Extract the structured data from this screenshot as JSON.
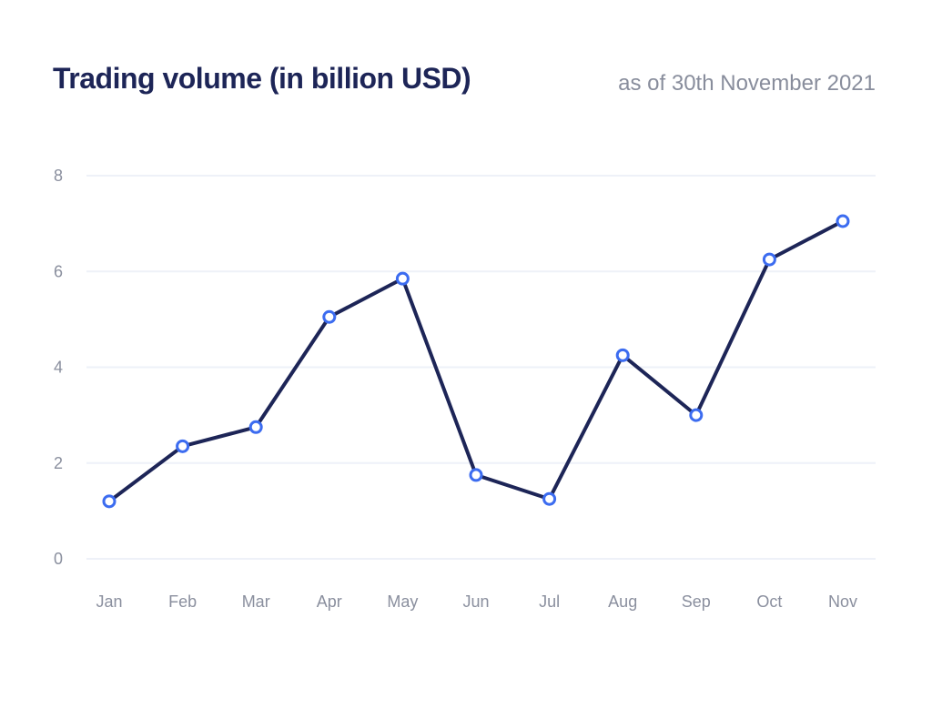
{
  "header": {
    "title": "Trading volume (in billion USD)",
    "subtitle": "as of 30th November 2021"
  },
  "colors": {
    "line": "#1d2557",
    "point_stroke": "#3c6cf0",
    "point_fill": "#ffffff",
    "grid": "#eef1f8",
    "tick_text": "#8a8f9e"
  },
  "chart_data": {
    "type": "line",
    "title": "Trading volume (in billion USD)",
    "subtitle": "as of 30th November 2021",
    "categories": [
      "Jan",
      "Feb",
      "Mar",
      "Apr",
      "May",
      "Jun",
      "Jul",
      "Aug",
      "Sep",
      "Oct",
      "Nov"
    ],
    "series": [
      {
        "name": "Trading volume",
        "values": [
          1.2,
          2.35,
          2.75,
          5.05,
          5.85,
          1.75,
          1.25,
          4.25,
          3.0,
          6.25,
          7.05
        ]
      }
    ],
    "xlabel": "",
    "ylabel": "",
    "ylim": [
      0,
      8
    ],
    "yticks": [
      "0",
      "2",
      "4",
      "6",
      "8"
    ],
    "grid": true,
    "legend": "none"
  }
}
